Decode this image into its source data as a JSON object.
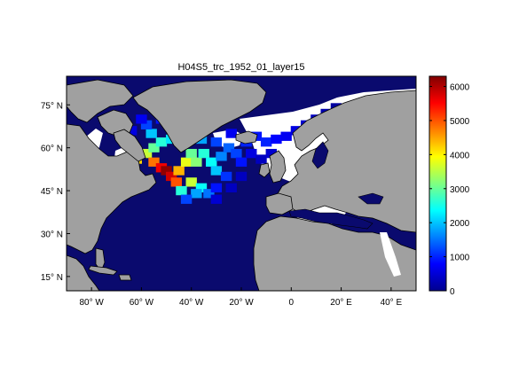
{
  "chart_data": {
    "type": "heatmap",
    "title": "H04S5_trc_1952_01_layer15",
    "colors": {
      "ocean_empty": "#0a0a6e",
      "land": "#a0a0a0",
      "ice_white": "#ffffff",
      "coast": "#000000"
    },
    "lon_range": [
      -90,
      50
    ],
    "lat_range": [
      10,
      85
    ],
    "x_ticks": [
      {
        "label": "80° W",
        "lon": -80
      },
      {
        "label": "60° W",
        "lon": -60
      },
      {
        "label": "40° W",
        "lon": -40
      },
      {
        "label": "20° W",
        "lon": -20
      },
      {
        "label": "0",
        "lon": 0
      },
      {
        "label": "20° E",
        "lon": 20
      },
      {
        "label": "40° E",
        "lon": 40
      }
    ],
    "y_ticks": [
      {
        "label": "75° N",
        "lat": 75
      },
      {
        "label": "60° N",
        "lat": 60
      },
      {
        "label": "45° N",
        "lat": 45
      },
      {
        "label": "30° N",
        "lat": 30
      },
      {
        "label": "15° N",
        "lat": 15
      }
    ],
    "colorbar": {
      "min": 0,
      "max": 6300,
      "ticks": [
        0,
        1000,
        2000,
        3000,
        4000,
        5000,
        6000
      ],
      "colormap": "jet"
    },
    "field_cells": [
      {
        "lon": -62,
        "lat": 56,
        "value": 4200
      },
      {
        "lon": -58,
        "lat": 58,
        "value": 3600
      },
      {
        "lon": -55,
        "lat": 60,
        "value": 3000
      },
      {
        "lon": -52,
        "lat": 62,
        "value": 2600
      },
      {
        "lon": -48,
        "lat": 63,
        "value": 2200
      },
      {
        "lon": -55,
        "lat": 55,
        "value": 4800
      },
      {
        "lon": -52,
        "lat": 53,
        "value": 5600
      },
      {
        "lon": -50,
        "lat": 52,
        "value": 6200
      },
      {
        "lon": -48,
        "lat": 50,
        "value": 5800
      },
      {
        "lon": -46,
        "lat": 48,
        "value": 5000
      },
      {
        "lon": -45,
        "lat": 52,
        "value": 4400
      },
      {
        "lon": -42,
        "lat": 55,
        "value": 3800
      },
      {
        "lon": -40,
        "lat": 58,
        "value": 3000
      },
      {
        "lon": -38,
        "lat": 55,
        "value": 3200
      },
      {
        "lon": -35,
        "lat": 58,
        "value": 2600
      },
      {
        "lon": -32,
        "lat": 55,
        "value": 2400
      },
      {
        "lon": -30,
        "lat": 52,
        "value": 2000
      },
      {
        "lon": -28,
        "lat": 57,
        "value": 1600
      },
      {
        "lon": -25,
        "lat": 60,
        "value": 1400
      },
      {
        "lon": -22,
        "lat": 58,
        "value": 1200
      },
      {
        "lon": -40,
        "lat": 48,
        "value": 3600
      },
      {
        "lon": -36,
        "lat": 46,
        "value": 2400
      },
      {
        "lon": -33,
        "lat": 44,
        "value": 1500
      },
      {
        "lon": -38,
        "lat": 44,
        "value": 1800
      },
      {
        "lon": -44,
        "lat": 45,
        "value": 2600
      },
      {
        "lon": -42,
        "lat": 42,
        "value": 1200
      },
      {
        "lon": -30,
        "lat": 46,
        "value": 900
      },
      {
        "lon": -26,
        "lat": 50,
        "value": 1100
      },
      {
        "lon": -20,
        "lat": 55,
        "value": 900
      },
      {
        "lon": -18,
        "lat": 62,
        "value": 1000
      },
      {
        "lon": -14,
        "lat": 64,
        "value": 900
      },
      {
        "lon": -10,
        "lat": 62,
        "value": 1000
      },
      {
        "lon": -6,
        "lat": 63,
        "value": 800
      },
      {
        "lon": -2,
        "lat": 64,
        "value": 700
      },
      {
        "lon": 2,
        "lat": 66,
        "value": 600
      },
      {
        "lon": 6,
        "lat": 68,
        "value": 500
      },
      {
        "lon": 10,
        "lat": 70,
        "value": 400
      },
      {
        "lon": 14,
        "lat": 72,
        "value": 300
      },
      {
        "lon": -16,
        "lat": 58,
        "value": 600
      },
      {
        "lon": -12,
        "lat": 56,
        "value": 400
      },
      {
        "lon": -8,
        "lat": 58,
        "value": 500
      },
      {
        "lon": -24,
        "lat": 65,
        "value": 700
      },
      {
        "lon": -30,
        "lat": 62,
        "value": 1200
      },
      {
        "lon": -36,
        "lat": 63,
        "value": 1800
      },
      {
        "lon": -40,
        "lat": 64,
        "value": 1800
      },
      {
        "lon": -56,
        "lat": 65,
        "value": 2000
      },
      {
        "lon": -58,
        "lat": 68,
        "value": 1200
      },
      {
        "lon": -60,
        "lat": 70,
        "value": 700
      },
      {
        "lon": -64,
        "lat": 66,
        "value": 600
      },
      {
        "lon": -52,
        "lat": 70,
        "value": 900
      },
      {
        "lon": -30,
        "lat": 42,
        "value": 500
      },
      {
        "lon": -24,
        "lat": 46,
        "value": 400
      },
      {
        "lon": -20,
        "lat": 50,
        "value": 400
      },
      {
        "lon": 18,
        "lat": 74,
        "value": 200
      },
      {
        "lon": 22,
        "lat": 72,
        "value": 150
      }
    ]
  }
}
